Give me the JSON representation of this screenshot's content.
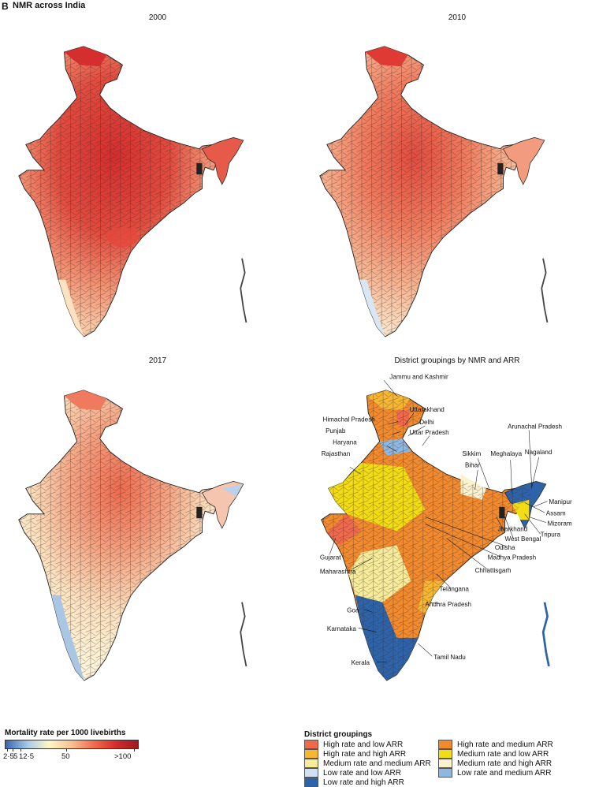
{
  "panel_letter": "B",
  "figure_title": "NMR across India",
  "maps": [
    {
      "title": "2000"
    },
    {
      "title": "2010"
    },
    {
      "title": "2017"
    },
    {
      "title": "District groupings by NMR and ARR"
    }
  ],
  "state_labels": [
    "Jammu and Kashmir",
    "Himachal Pradesh",
    "Uttarakhand",
    "Punjab",
    "Delhi",
    "Uttar Pradesh",
    "Haryana",
    "Arunachal Pradesh",
    "Rajasthan",
    "Sikkim",
    "Meghalaya",
    "Nagaland",
    "Bihar",
    "Manipur",
    "Assam",
    "Mizoram",
    "Tripura",
    "Gujarat",
    "West Bengal",
    "Jharkhand",
    "Odisha",
    "Madhya Pradesh",
    "Maharashtra",
    "Chhattisgarh",
    "Telangana",
    "Goa",
    "Andhra Pradesh",
    "Karnataka",
    "Kerala",
    "Tamil Nadu"
  ],
  "scale": {
    "title": "Mortality rate per 1000 livebirths",
    "labels": [
      "2·5",
      "5",
      "12·5",
      "50",
      ">100"
    ],
    "colors": [
      "#3a66b0",
      "#a9cbe6",
      "#fff7c6",
      "#f9c08f",
      "#ef6a4d",
      "#d42e2e",
      "#9e1a1f"
    ]
  },
  "groupings": {
    "title": "District groupings",
    "items": [
      {
        "label": "High rate and low ARR",
        "color": "#ef6a4d"
      },
      {
        "label": "High rate and medium ARR",
        "color": "#f28a2e"
      },
      {
        "label": "High rate and high ARR",
        "color": "#f6b733"
      },
      {
        "label": "Medium rate and low ARR",
        "color": "#f2dc13"
      },
      {
        "label": "Medium rate and medium ARR",
        "color": "#f7ec9a"
      },
      {
        "label": "Medium rate and high ARR",
        "color": "#fbf3cf"
      },
      {
        "label": "Low rate and low ARR",
        "color": "#cfe2f4"
      },
      {
        "label": "Low rate and medium ARR",
        "color": "#8fb8e0"
      },
      {
        "label": "Low rate and high ARR",
        "color": "#2d63a8"
      }
    ]
  }
}
